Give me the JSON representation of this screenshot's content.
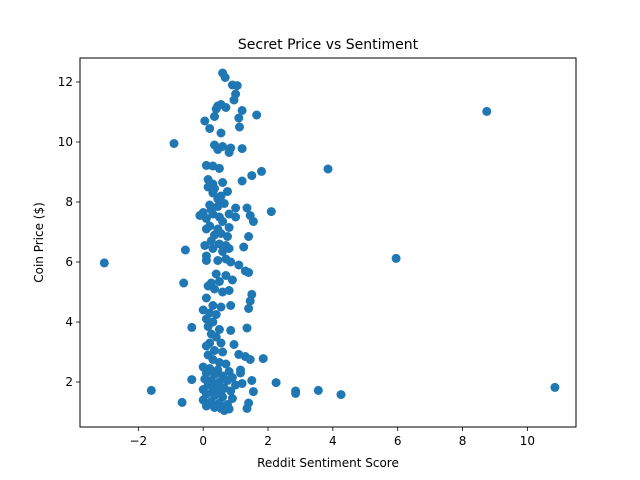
{
  "chart_data": {
    "type": "scatter",
    "title": "Secret Price vs Sentiment",
    "xlabel": "Reddit Sentiment Score",
    "ylabel": "Coin Price ($)",
    "xlim": [
      -3.8,
      11.5
    ],
    "ylim": [
      0.5,
      12.8
    ],
    "xticks": [
      -2,
      0,
      2,
      4,
      6,
      8,
      10
    ],
    "xtick_labels": [
      "−2",
      "0",
      "2",
      "4",
      "6",
      "8",
      "10"
    ],
    "yticks": [
      2,
      4,
      6,
      8,
      10,
      12
    ],
    "ytick_labels": [
      "2",
      "4",
      "6",
      "8",
      "10",
      "12"
    ],
    "grid": false,
    "legend": "none",
    "marker_color": "#1f77b4",
    "points": [
      [
        -3.05,
        5.97
      ],
      [
        -1.6,
        1.72
      ],
      [
        -0.9,
        9.95
      ],
      [
        -0.65,
        1.32
      ],
      [
        -0.55,
        6.4
      ],
      [
        -0.6,
        5.3
      ],
      [
        -0.35,
        2.08
      ],
      [
        -0.35,
        3.82
      ],
      [
        0.1,
        9.22
      ],
      [
        0.3,
        9.2
      ],
      [
        0.05,
        10.7
      ],
      [
        0.2,
        10.45
      ],
      [
        0.4,
        11.1
      ],
      [
        0.45,
        11.2
      ],
      [
        0.55,
        11.25
      ],
      [
        0.7,
        11.15
      ],
      [
        0.35,
        10.85
      ],
      [
        0.55,
        10.3
      ],
      [
        0.6,
        12.3
      ],
      [
        0.68,
        12.15
      ],
      [
        0.9,
        11.9
      ],
      [
        1.05,
        11.88
      ],
      [
        1.0,
        11.6
      ],
      [
        0.95,
        11.4
      ],
      [
        1.2,
        11.05
      ],
      [
        1.65,
        10.9
      ],
      [
        1.1,
        10.8
      ],
      [
        1.12,
        10.5
      ],
      [
        0.35,
        9.9
      ],
      [
        0.45,
        9.75
      ],
      [
        0.6,
        9.85
      ],
      [
        0.8,
        9.65
      ],
      [
        0.85,
        9.8
      ],
      [
        1.2,
        9.78
      ],
      [
        0.5,
        9.12
      ],
      [
        1.8,
        9.02
      ],
      [
        1.5,
        8.88
      ],
      [
        1.2,
        8.7
      ],
      [
        0.15,
        8.75
      ],
      [
        0.3,
        8.6
      ],
      [
        0.15,
        8.5
      ],
      [
        0.35,
        8.45
      ],
      [
        0.6,
        8.65
      ],
      [
        0.75,
        8.35
      ],
      [
        0.55,
        8.2
      ],
      [
        0.45,
        8.1
      ],
      [
        0.3,
        8.3
      ],
      [
        0.2,
        7.9
      ],
      [
        0.25,
        7.75
      ],
      [
        0.45,
        7.85
      ],
      [
        0.65,
        7.95
      ],
      [
        1.0,
        7.8
      ],
      [
        1.35,
        7.8
      ],
      [
        1.45,
        7.55
      ],
      [
        1.55,
        7.35
      ],
      [
        2.1,
        7.68
      ],
      [
        -0.1,
        7.55
      ],
      [
        0.0,
        7.65
      ],
      [
        0.1,
        7.45
      ],
      [
        0.3,
        7.6
      ],
      [
        0.5,
        7.5
      ],
      [
        0.8,
        7.6
      ],
      [
        1.0,
        7.5
      ],
      [
        0.6,
        7.35
      ],
      [
        0.2,
        7.2
      ],
      [
        0.45,
        7.1
      ],
      [
        0.8,
        7.15
      ],
      [
        0.1,
        7.1
      ],
      [
        0.35,
        6.9
      ],
      [
        0.55,
        6.95
      ],
      [
        0.75,
        6.85
      ],
      [
        1.4,
        6.85
      ],
      [
        0.25,
        6.7
      ],
      [
        0.5,
        6.6
      ],
      [
        0.7,
        6.55
      ],
      [
        1.25,
        6.5
      ],
      [
        0.05,
        6.55
      ],
      [
        0.3,
        6.45
      ],
      [
        0.6,
        6.35
      ],
      [
        0.8,
        6.45
      ],
      [
        0.1,
        6.2
      ],
      [
        0.1,
        6.05
      ],
      [
        0.45,
        6.05
      ],
      [
        0.7,
        6.1
      ],
      [
        0.85,
        6.0
      ],
      [
        1.1,
        5.9
      ],
      [
        1.3,
        5.7
      ],
      [
        1.4,
        5.65
      ],
      [
        0.4,
        5.6
      ],
      [
        0.7,
        5.55
      ],
      [
        0.9,
        5.4
      ],
      [
        0.25,
        5.3
      ],
      [
        0.5,
        5.35
      ],
      [
        0.15,
        5.2
      ],
      [
        0.35,
        5.1
      ],
      [
        0.6,
        5.0
      ],
      [
        0.8,
        5.05
      ],
      [
        1.5,
        4.92
      ],
      [
        1.45,
        4.7
      ],
      [
        1.4,
        4.45
      ],
      [
        0.1,
        4.8
      ],
      [
        0.3,
        4.55
      ],
      [
        0.55,
        4.5
      ],
      [
        0.85,
        4.55
      ],
      [
        0.0,
        4.4
      ],
      [
        0.2,
        4.3
      ],
      [
        0.4,
        4.25
      ],
      [
        0.1,
        4.1
      ],
      [
        0.3,
        4.0
      ],
      [
        0.15,
        3.85
      ],
      [
        0.5,
        3.75
      ],
      [
        0.85,
        3.72
      ],
      [
        1.35,
        3.8
      ],
      [
        0.25,
        3.6
      ],
      [
        0.4,
        3.5
      ],
      [
        0.2,
        3.3
      ],
      [
        0.55,
        3.3
      ],
      [
        0.95,
        3.25
      ],
      [
        0.1,
        3.2
      ],
      [
        0.35,
        3.05
      ],
      [
        0.6,
        3.0
      ],
      [
        0.15,
        2.9
      ],
      [
        1.1,
        2.92
      ],
      [
        1.3,
        2.85
      ],
      [
        1.45,
        2.75
      ],
      [
        1.85,
        2.78
      ],
      [
        0.3,
        2.75
      ],
      [
        0.5,
        2.65
      ],
      [
        0.7,
        2.6
      ],
      [
        0.0,
        2.5
      ],
      [
        0.2,
        2.45
      ],
      [
        0.45,
        2.4
      ],
      [
        0.8,
        2.35
      ],
      [
        1.15,
        2.4
      ],
      [
        0.1,
        2.3
      ],
      [
        0.35,
        2.25
      ],
      [
        0.6,
        2.2
      ],
      [
        0.9,
        2.15
      ],
      [
        1.15,
        2.3
      ],
      [
        0.05,
        2.1
      ],
      [
        0.25,
        2.05
      ],
      [
        0.5,
        2.0
      ],
      [
        0.75,
        2.05
      ],
      [
        1.5,
        2.05
      ],
      [
        2.25,
        1.98
      ],
      [
        0.15,
        1.9
      ],
      [
        0.4,
        1.85
      ],
      [
        0.65,
        1.8
      ],
      [
        1.0,
        1.9
      ],
      [
        1.2,
        1.95
      ],
      [
        0.0,
        1.75
      ],
      [
        0.3,
        1.7
      ],
      [
        0.55,
        1.65
      ],
      [
        0.85,
        1.7
      ],
      [
        1.55,
        1.68
      ],
      [
        2.85,
        1.7
      ],
      [
        2.85,
        1.62
      ],
      [
        3.55,
        1.72
      ],
      [
        4.25,
        1.58
      ],
      [
        0.1,
        1.6
      ],
      [
        0.35,
        1.55
      ],
      [
        0.6,
        1.5
      ],
      [
        0.9,
        1.45
      ],
      [
        0.0,
        1.4
      ],
      [
        0.25,
        1.35
      ],
      [
        0.5,
        1.3
      ],
      [
        0.75,
        1.25
      ],
      [
        1.4,
        1.3
      ],
      [
        0.1,
        1.2
      ],
      [
        0.35,
        1.15
      ],
      [
        0.55,
        1.12
      ],
      [
        0.8,
        1.1
      ],
      [
        1.35,
        1.12
      ],
      [
        0.65,
        1.05
      ],
      [
        3.85,
        9.1
      ],
      [
        5.95,
        6.12
      ],
      [
        8.75,
        11.02
      ],
      [
        10.85,
        1.82
      ]
    ]
  }
}
